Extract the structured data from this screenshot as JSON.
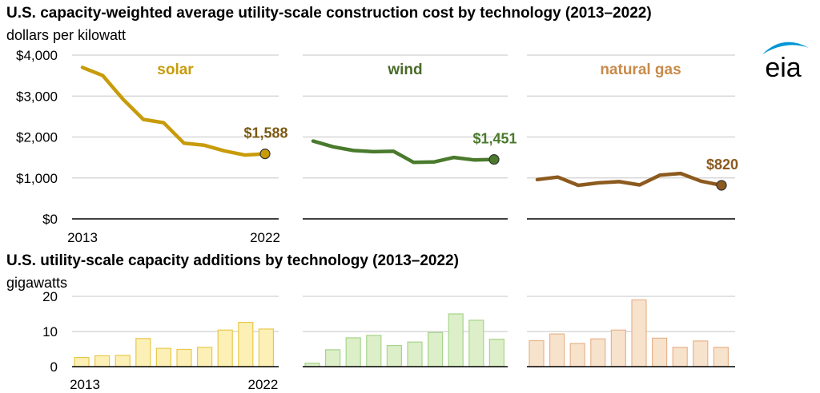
{
  "cost_chart": {
    "title": "U.S. capacity-weighted average utility-scale construction cost by technology (2013–2022)",
    "unit": "dollars per kilowatt"
  },
  "additions_chart": {
    "title": "U.S. utility-scale capacity additions by technology (2013–2022)",
    "unit": "gigawatts"
  },
  "logo": {
    "text": "eia",
    "color": "#0096d6"
  },
  "colors": {
    "solar_line": "#c89b0a",
    "solar_label": "#c89b0a",
    "solar_value": "#7a5a12",
    "wind_line": "#4a7a2c",
    "wind_label": "#4a6a2a",
    "wind_value": "#4a7a2c",
    "gas_line": "#8c5a1e",
    "gas_label": "#c88a4a",
    "gas_value": "#8c5a1e",
    "solar_bar_fill": "#fdf0b6",
    "solar_bar_stroke": "#e8c84a",
    "wind_bar_fill": "#dcefc8",
    "wind_bar_stroke": "#a8d48c",
    "gas_bar_fill": "#f7e2cc",
    "gas_bar_stroke": "#e8b48c",
    "gridline": "#d0d0d0",
    "axis": "#000000"
  },
  "chart_data": [
    {
      "type": "line",
      "title": "U.S. capacity-weighted average utility-scale construction cost by technology (2013–2022)",
      "ylabel": "dollars per kilowatt",
      "x": [
        2013,
        2014,
        2015,
        2016,
        2017,
        2018,
        2019,
        2020,
        2021,
        2022
      ],
      "x_tick_labels": [
        "2013",
        "2022"
      ],
      "ylim": [
        0,
        4000
      ],
      "y_ticks": [
        0,
        1000,
        2000,
        3000,
        4000
      ],
      "y_tick_labels": [
        "$0",
        "$1,000",
        "$2,000",
        "$3,000",
        "$4,000"
      ],
      "grid": true,
      "series": [
        {
          "name": "solar",
          "values": [
            3700,
            3500,
            2920,
            2430,
            2350,
            1850,
            1800,
            1660,
            1560,
            1588
          ],
          "end_label": "$1,588"
        },
        {
          "name": "wind",
          "values": [
            1900,
            1760,
            1670,
            1640,
            1650,
            1380,
            1390,
            1500,
            1440,
            1451
          ],
          "end_label": "$1,451"
        },
        {
          "name": "natural gas",
          "values": [
            960,
            1020,
            820,
            880,
            910,
            830,
            1070,
            1110,
            920,
            820
          ],
          "end_label": "$820"
        }
      ]
    },
    {
      "type": "bar",
      "title": "U.S. utility-scale capacity additions by technology (2013–2022)",
      "ylabel": "gigawatts",
      "categories": [
        2013,
        2014,
        2015,
        2016,
        2017,
        2018,
        2019,
        2020,
        2021,
        2022
      ],
      "x_tick_labels": [
        "2013",
        "2022"
      ],
      "ylim": [
        0,
        20
      ],
      "y_ticks": [
        0,
        10,
        20
      ],
      "y_tick_labels": [
        "0",
        "10",
        "20"
      ],
      "grid": true,
      "series": [
        {
          "name": "solar",
          "values": [
            2.6,
            3.1,
            3.2,
            8.0,
            5.2,
            4.9,
            5.5,
            10.4,
            12.6,
            10.7
          ]
        },
        {
          "name": "wind",
          "values": [
            1.0,
            4.8,
            8.2,
            8.9,
            6.0,
            7.0,
            9.7,
            15.0,
            13.2,
            7.8
          ]
        },
        {
          "name": "natural gas",
          "values": [
            7.4,
            9.3,
            6.6,
            7.9,
            10.4,
            19.0,
            8.1,
            5.5,
            7.3,
            5.5
          ]
        }
      ]
    }
  ]
}
